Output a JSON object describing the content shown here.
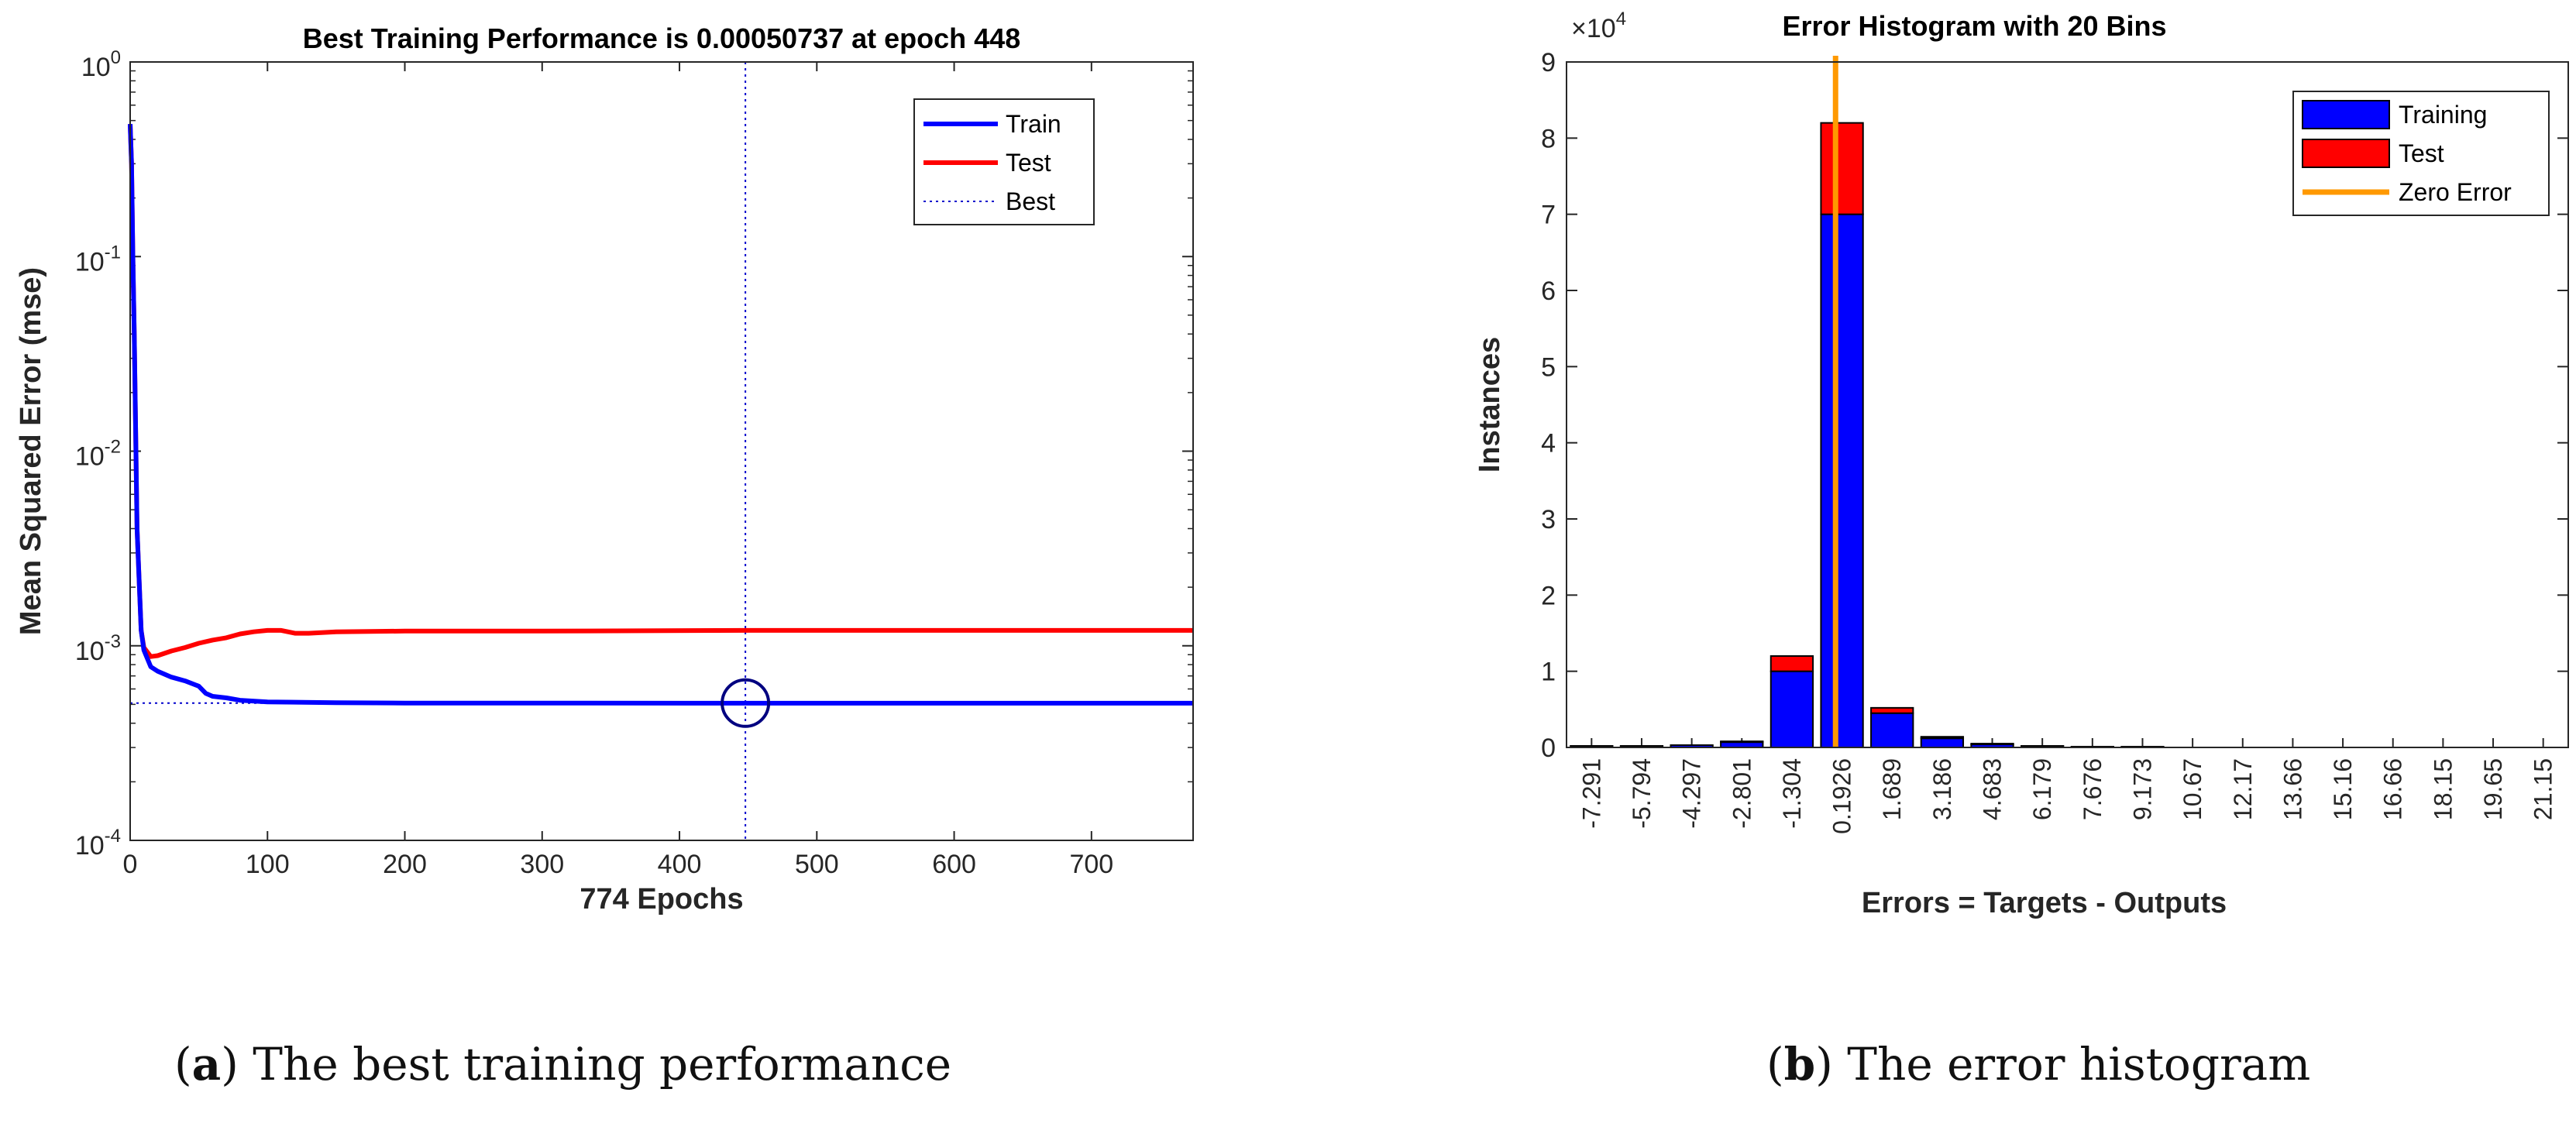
{
  "chart_data": [
    {
      "id": "a",
      "type": "line",
      "title": "Best Training Performance is 0.00050737 at epoch 448",
      "xlabel": "774 Epochs",
      "ylabel": "Mean Squared Error  (mse)",
      "xlim": [
        0,
        774
      ],
      "ylim": [
        0.0001,
        1
      ],
      "yscale": "log",
      "xticks": [
        0,
        100,
        200,
        300,
        400,
        500,
        600,
        700
      ],
      "xtick_labels": [
        "0",
        "100",
        "200",
        "300",
        "400",
        "500",
        "600",
        "700"
      ],
      "yticks": [
        0.0001,
        0.001,
        0.01,
        0.1,
        1
      ],
      "ytick_base": [
        "10",
        "10",
        "10",
        "10",
        "10"
      ],
      "ytick_exp": [
        "-4",
        "-3",
        "-2",
        "-1",
        "0"
      ],
      "series": [
        {
          "name": "Train",
          "color": "#0000ff",
          "x": [
            0,
            1,
            2,
            3,
            5,
            8,
            10,
            15,
            20,
            30,
            40,
            50,
            55,
            60,
            70,
            80,
            100,
            150,
            200,
            300,
            448,
            600,
            774
          ],
          "y": [
            0.48,
            0.3,
            0.1,
            0.04,
            0.004,
            0.0012,
            0.00095,
            0.00078,
            0.00074,
            0.00069,
            0.00066,
            0.00062,
            0.00057,
            0.00055,
            0.00054,
            0.000525,
            0.000515,
            0.00051,
            0.000508,
            0.000508,
            0.000507,
            0.000507,
            0.000507
          ]
        },
        {
          "name": "Test",
          "color": "#ff0000",
          "x": [
            0,
            1,
            2,
            3,
            5,
            8,
            10,
            15,
            20,
            30,
            40,
            50,
            60,
            70,
            80,
            90,
            100,
            110,
            120,
            130,
            150,
            200,
            300,
            448,
            600,
            774
          ],
          "y": [
            0.48,
            0.3,
            0.1,
            0.04,
            0.004,
            0.0012,
            0.00098,
            0.00088,
            0.00089,
            0.00094,
            0.00098,
            0.00103,
            0.00107,
            0.0011,
            0.00115,
            0.00118,
            0.0012,
            0.0012,
            0.00116,
            0.00116,
            0.00118,
            0.00119,
            0.00119,
            0.0012,
            0.0012,
            0.0012
          ]
        }
      ],
      "best": {
        "name": "Best",
        "epoch": 448,
        "value": 0.00050737,
        "color": "#0000cc"
      },
      "legend": [
        "Train",
        "Test",
        "Best"
      ],
      "legend_position": "top-right"
    },
    {
      "id": "b",
      "type": "bar",
      "title": "Error Histogram with 20 Bins",
      "xlabel": "Errors = Targets - Outputs",
      "ylabel": "Instances",
      "y_multiplier": "×10",
      "y_multiplier_exp": "4",
      "ylim": [
        0,
        9
      ],
      "yticks": [
        0,
        1,
        2,
        3,
        4,
        5,
        6,
        7,
        8,
        9
      ],
      "ytick_labels": [
        "0",
        "1",
        "2",
        "3",
        "4",
        "5",
        "6",
        "7",
        "8",
        "9"
      ],
      "categories": [
        "-7.291",
        "-5.794",
        "-4.297",
        "-2.801",
        "-1.304",
        "0.1926",
        "1.689",
        "3.186",
        "4.683",
        "6.179",
        "7.676",
        "9.173",
        "10.67",
        "12.17",
        "13.66",
        "15.16",
        "16.66",
        "18.15",
        "19.65",
        "21.15"
      ],
      "series": [
        {
          "name": "Training",
          "color": "#0000ff",
          "values": [
            0.02,
            0.02,
            0.03,
            0.07,
            1.0,
            7.0,
            0.45,
            0.12,
            0.04,
            0.02,
            0.01,
            0.01,
            0.0,
            0.0,
            0.0,
            0.0,
            0.0,
            0.0,
            0.0,
            0.0
          ]
        },
        {
          "name": "Test",
          "color": "#ff0000",
          "values": [
            0.0,
            0.0,
            0.0,
            0.01,
            0.2,
            1.2,
            0.07,
            0.02,
            0.01,
            0.0,
            0.0,
            0.0,
            0.0,
            0.0,
            0.0,
            0.0,
            0.0,
            0.0,
            0.0,
            0.0
          ]
        }
      ],
      "zero_error": {
        "name": "Zero Error",
        "x": 0,
        "color": "#ff9900"
      },
      "legend": [
        "Training",
        "Test",
        "Zero Error"
      ],
      "legend_position": "top-right"
    }
  ],
  "captions": {
    "a_letter": "a",
    "a_text": " The best training performance",
    "b_letter": "b",
    "b_text": " The error histogram"
  }
}
